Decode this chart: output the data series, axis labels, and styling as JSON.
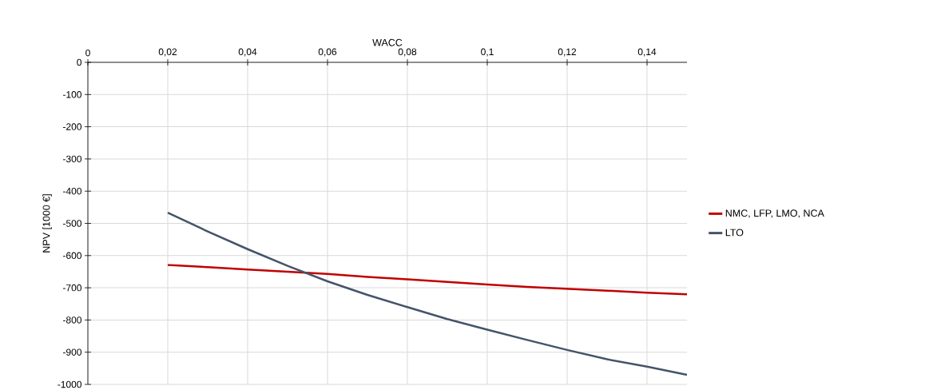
{
  "chart_data": {
    "type": "line",
    "xlabel": "WACC",
    "ylabel": "NPV [1000 €]",
    "x": [
      0.02,
      0.03,
      0.04,
      0.05,
      0.06,
      0.07,
      0.08,
      0.09,
      0.1,
      0.11,
      0.12,
      0.13,
      0.14,
      0.15
    ],
    "series": [
      {
        "name": "NMC, LFP, LMO, NCA",
        "color": "#c00000",
        "values": [
          -629,
          -636,
          -643,
          -650,
          -657,
          -666,
          -674,
          -682,
          -690,
          -697,
          -703,
          -709,
          -715,
          -720
        ]
      },
      {
        "name": "LTO",
        "color": "#44546a",
        "values": [
          -467,
          -525,
          -580,
          -632,
          -680,
          -722,
          -760,
          -797,
          -830,
          -862,
          -893,
          -922,
          -945,
          -970
        ]
      }
    ],
    "xlim": [
      0,
      0.15
    ],
    "xticks": [
      0,
      {
        "value": 0.02,
        "label": "0,02"
      },
      {
        "value": 0.04,
        "label": "0,04"
      },
      {
        "value": 0.06,
        "label": "0,06"
      },
      {
        "value": 0.08,
        "label": "0,08"
      },
      {
        "value": 0.1,
        "label": "0,1"
      },
      {
        "value": 0.12,
        "label": "0,12"
      },
      {
        "value": 0.14,
        "label": "0,14"
      }
    ],
    "ylim": [
      -1000,
      0
    ],
    "yticks": [
      -1000,
      -900,
      -800,
      -700,
      -600,
      -500,
      -400,
      -300,
      -200,
      -100,
      0
    ],
    "grid": true,
    "legend": "right",
    "marker": "none",
    "line_style": "solid"
  }
}
